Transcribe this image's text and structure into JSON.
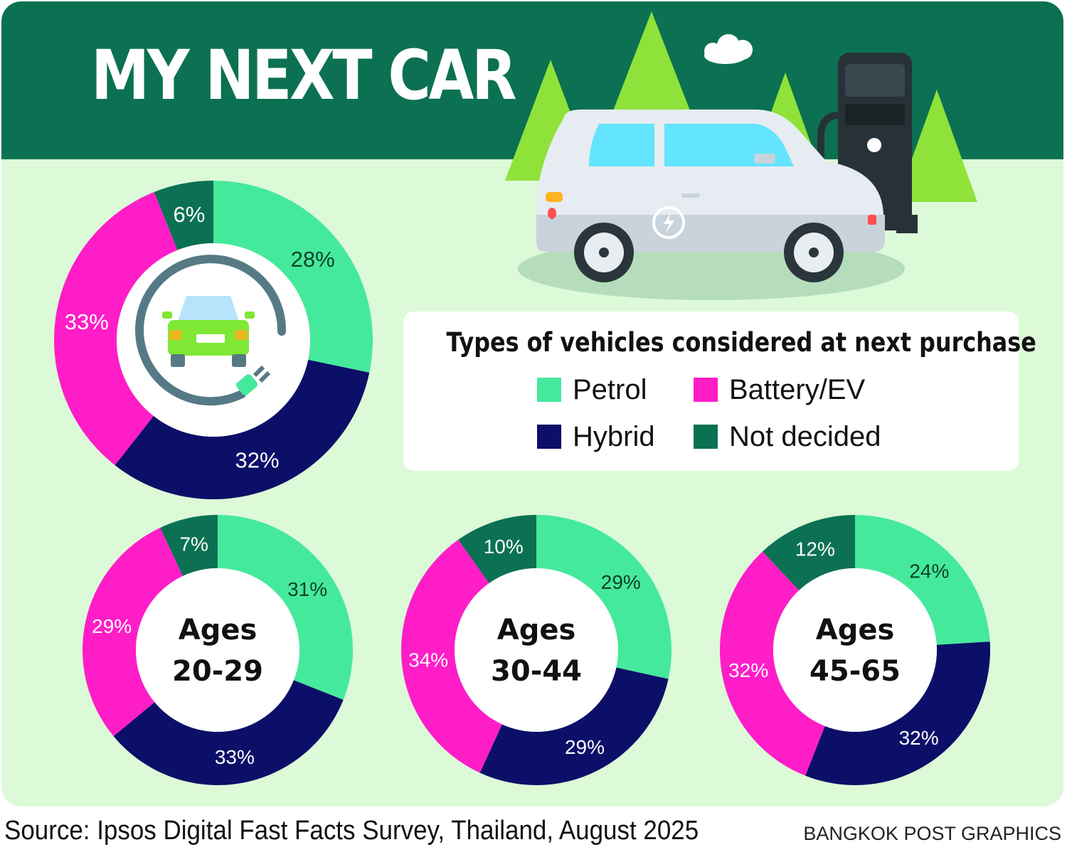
{
  "title": "MY NEXT CAR",
  "legend": {
    "title": "Types of vehicles considered at next purchase",
    "items": [
      {
        "label": "Petrol",
        "color": "#45e99c"
      },
      {
        "label": "Battery/EV",
        "color": "#ff1dc8"
      },
      {
        "label": "Hybrid",
        "color": "#0c0f68"
      },
      {
        "label": "Not decided",
        "color": "#0b7152"
      }
    ]
  },
  "chart_data": [
    {
      "type": "pie",
      "categories": [
        "Petrol",
        "Hybrid",
        "Battery/EV",
        "Not decided"
      ],
      "values": [
        28,
        32,
        33,
        6
      ],
      "labels": [
        "28%",
        "32%",
        "33%",
        "6%"
      ],
      "center_label": []
    },
    {
      "type": "pie",
      "categories": [
        "Petrol",
        "Hybrid",
        "Battery/EV",
        "Not decided"
      ],
      "values": [
        31,
        33,
        29,
        7
      ],
      "labels": [
        "31%",
        "33%",
        "29%",
        "7%"
      ],
      "center_label": [
        "Ages",
        "20-29"
      ]
    },
    {
      "type": "pie",
      "categories": [
        "Petrol",
        "Hybrid",
        "Battery/EV",
        "Not decided"
      ],
      "values": [
        29,
        29,
        34,
        10
      ],
      "labels": [
        "29%",
        "29%",
        "34%",
        "10%"
      ],
      "center_label": [
        "Ages",
        "30-44"
      ]
    },
    {
      "type": "pie",
      "categories": [
        "Petrol",
        "Hybrid",
        "Battery/EV",
        "Not decided"
      ],
      "values": [
        24,
        32,
        32,
        12
      ],
      "labels": [
        "24%",
        "32%",
        "32%",
        "12%"
      ],
      "center_label": [
        "Ages",
        "45-65"
      ]
    }
  ],
  "colors": {
    "Petrol": "#45e99c",
    "Battery/EV": "#ff1dc8",
    "Hybrid": "#0c0f68",
    "Not decided": "#0b7152"
  },
  "icons": [
    "ev-car-plug-icon",
    "electric-car-illustration",
    "charging-station-icon",
    "pine-tree-icon",
    "cloud-icon"
  ],
  "footer": {
    "source": "Source: Ipsos Digital Fast Facts Survey, Thailand, August 2025",
    "credit": "BANGKOK POST GRAPHICS"
  }
}
